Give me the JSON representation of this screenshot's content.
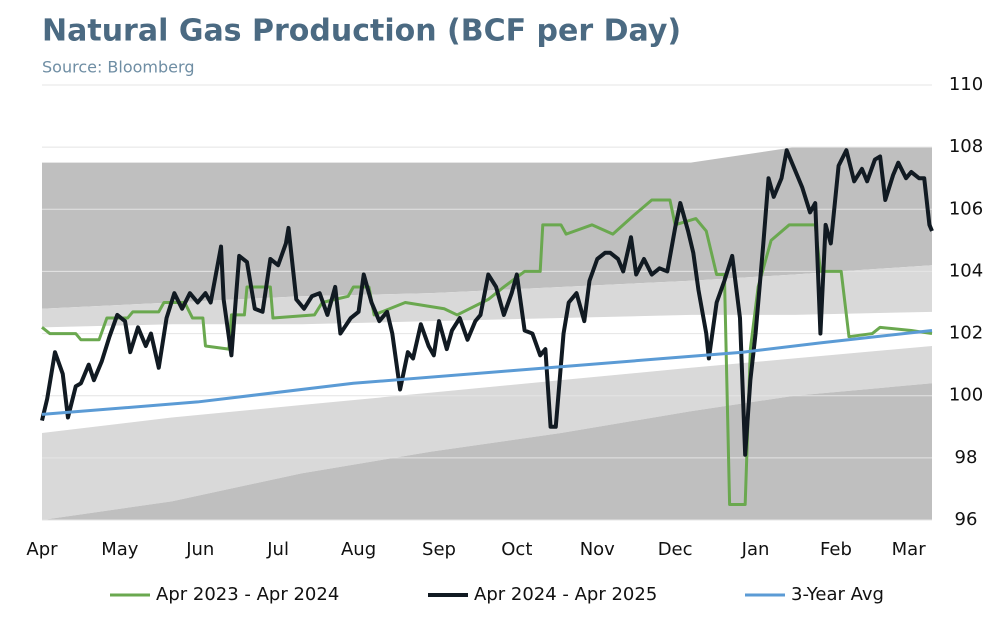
{
  "chart_data": {
    "type": "line",
    "title": "Natural Gas Production (BCF per Day)",
    "subtitle": "Source: Bloomberg",
    "xlim": [
      0,
      343
    ],
    "xticks": [
      {
        "value": 0,
        "label": "Apr"
      },
      {
        "value": 30,
        "label": "May"
      },
      {
        "value": 61,
        "label": "Jun"
      },
      {
        "value": 91,
        "label": "Jul"
      },
      {
        "value": 122,
        "label": "Aug"
      },
      {
        "value": 153,
        "label": "Sep"
      },
      {
        "value": 183,
        "label": "Oct"
      },
      {
        "value": 214,
        "label": "Nov"
      },
      {
        "value": 244,
        "label": "Dec"
      },
      {
        "value": 275,
        "label": "Jan"
      },
      {
        "value": 306,
        "label": "Feb"
      },
      {
        "value": 334,
        "label": "Mar"
      }
    ],
    "ylim": [
      96,
      110
    ],
    "yticks": [
      96,
      98,
      100,
      102,
      104,
      106,
      108,
      110
    ],
    "grid": true,
    "legend": "bottom",
    "band_x": [
      0,
      50,
      100,
      150,
      200,
      250,
      290,
      343
    ],
    "bands": [
      {
        "color": "#bfbfbf",
        "upper": [
          107.5,
          107.5,
          107.5,
          107.5,
          107.5,
          107.5,
          108,
          108
        ],
        "lower": [
          102.8,
          103.0,
          103.2,
          103.3,
          103.5,
          103.7,
          103.9,
          104.2
        ]
      },
      {
        "color": "#d9d9d9",
        "upper": [
          102.8,
          103.0,
          103.2,
          103.3,
          103.5,
          103.7,
          103.9,
          104.2
        ],
        "lower": [
          102.2,
          102.3,
          102.3,
          102.4,
          102.5,
          102.6,
          102.6,
          102.7
        ]
      },
      {
        "color": "#d9d9d9",
        "upper": [
          98.8,
          99.3,
          99.7,
          100.1,
          100.5,
          100.9,
          101.2,
          101.6
        ],
        "lower": [
          96,
          96.6,
          97.5,
          98.2,
          98.8,
          99.5,
          100,
          100.4
        ]
      },
      {
        "color": "#bfbfbf",
        "upper": [
          96,
          96.6,
          97.5,
          98.2,
          98.8,
          99.5,
          100,
          100.4
        ],
        "lower": [
          96,
          96,
          96,
          96,
          96,
          96,
          96,
          96
        ]
      }
    ],
    "series": [
      {
        "name": "Apr 2023 - Apr 2024",
        "color": "#6aa84f",
        "width": 3,
        "x": [
          0,
          3,
          13,
          15,
          22,
          25,
          33,
          35,
          45,
          47,
          55,
          58,
          62,
          63,
          72,
          73,
          78,
          79,
          88,
          89,
          105,
          108,
          118,
          120,
          126,
          128,
          140,
          155,
          160,
          172,
          178,
          186,
          192,
          193,
          200,
          202,
          212,
          220,
          228,
          235,
          242,
          244,
          252,
          256,
          260,
          263,
          265,
          271,
          273,
          276,
          281,
          288,
          298,
          300,
          308,
          311,
          320,
          323,
          335,
          343
        ],
        "values": [
          102.2,
          102.0,
          102.0,
          101.8,
          101.8,
          102.5,
          102.5,
          102.7,
          102.7,
          103.0,
          103.0,
          102.5,
          102.5,
          101.6,
          101.5,
          102.6,
          102.6,
          103.5,
          103.5,
          102.5,
          102.6,
          103.0,
          103.2,
          103.5,
          103.5,
          102.6,
          103.0,
          102.8,
          102.6,
          103.1,
          103.5,
          104.0,
          104.0,
          105.5,
          105.5,
          105.2,
          105.5,
          105.2,
          105.8,
          106.3,
          106.3,
          105.5,
          105.7,
          105.3,
          103.9,
          103.9,
          96.5,
          96.5,
          101.5,
          103.5,
          105.0,
          105.5,
          105.5,
          104.0,
          104.0,
          101.9,
          102.0,
          102.2,
          102.1,
          102.0
        ]
      },
      {
        "name": "Apr 2024 - Apr 2025",
        "color": "#111a22",
        "width": 4,
        "x": [
          0,
          2,
          5,
          8,
          10,
          13,
          15,
          18,
          20,
          23,
          26,
          29,
          32,
          34,
          37,
          40,
          42,
          45,
          48,
          51,
          54,
          57,
          60,
          63,
          65,
          69,
          70,
          73,
          76,
          79,
          82,
          85,
          88,
          91,
          94,
          95,
          98,
          101,
          104,
          107,
          110,
          113,
          115,
          119,
          122,
          124,
          127,
          130,
          133,
          135,
          138,
          141,
          143,
          146,
          149,
          151,
          153,
          156,
          158,
          161,
          164,
          167,
          169,
          172,
          175,
          178,
          181,
          183,
          186,
          189,
          192,
          194,
          196,
          198,
          201,
          203,
          206,
          209,
          211,
          214,
          217,
          219,
          222,
          224,
          227,
          229,
          232,
          235,
          238,
          241,
          244,
          246,
          249,
          251,
          253,
          256,
          257,
          260,
          263,
          266,
          269,
          271,
          273,
          275,
          278,
          280,
          282,
          285,
          287,
          290,
          293,
          296,
          298,
          300,
          302,
          304,
          307,
          310,
          313,
          316,
          318,
          321,
          323,
          325,
          328,
          330,
          333,
          335,
          338,
          340,
          342,
          343
        ],
        "values": [
          99.2,
          99.9,
          101.4,
          100.7,
          99.3,
          100.3,
          100.4,
          101.0,
          100.5,
          101.1,
          101.9,
          102.6,
          102.4,
          101.4,
          102.2,
          101.6,
          102.0,
          100.9,
          102.5,
          103.3,
          102.8,
          103.3,
          103.0,
          103.3,
          103.0,
          104.8,
          103.1,
          101.3,
          104.5,
          104.3,
          102.8,
          102.7,
          104.4,
          104.2,
          104.9,
          105.4,
          103.1,
          102.8,
          103.2,
          103.3,
          102.6,
          103.5,
          102.0,
          102.5,
          102.7,
          103.9,
          103.0,
          102.4,
          102.7,
          102.0,
          100.2,
          101.4,
          101.2,
          102.3,
          101.6,
          101.3,
          102.4,
          101.5,
          102.1,
          102.5,
          101.8,
          102.4,
          102.6,
          103.9,
          103.5,
          102.6,
          103.3,
          103.9,
          102.1,
          102.0,
          101.3,
          101.5,
          99.0,
          99.0,
          102.0,
          103.0,
          103.3,
          102.4,
          103.7,
          104.4,
          104.6,
          104.6,
          104.4,
          104.0,
          105.1,
          103.9,
          104.4,
          103.9,
          104.1,
          104.0,
          105.4,
          106.2,
          105.3,
          104.6,
          103.4,
          102.0,
          101.2,
          103.0,
          103.7,
          104.5,
          102.5,
          98.1,
          100.5,
          102.0,
          104.9,
          107.0,
          106.4,
          107.0,
          107.9,
          107.3,
          106.7,
          105.9,
          106.2,
          102.0,
          105.5,
          104.9,
          107.4,
          107.9,
          106.9,
          107.3,
          106.9,
          107.6,
          107.7,
          106.3,
          107.1,
          107.5,
          107.0,
          107.2,
          107.0,
          107.0,
          105.5,
          105.3
        ]
      },
      {
        "name": "3-Year Avg",
        "color": "#5b9bd5",
        "width": 3,
        "x": [
          0,
          60,
          120,
          180,
          240,
          270,
          300,
          343
        ],
        "values": [
          99.4,
          99.8,
          100.4,
          100.8,
          101.2,
          101.4,
          101.7,
          102.1
        ]
      }
    ]
  }
}
